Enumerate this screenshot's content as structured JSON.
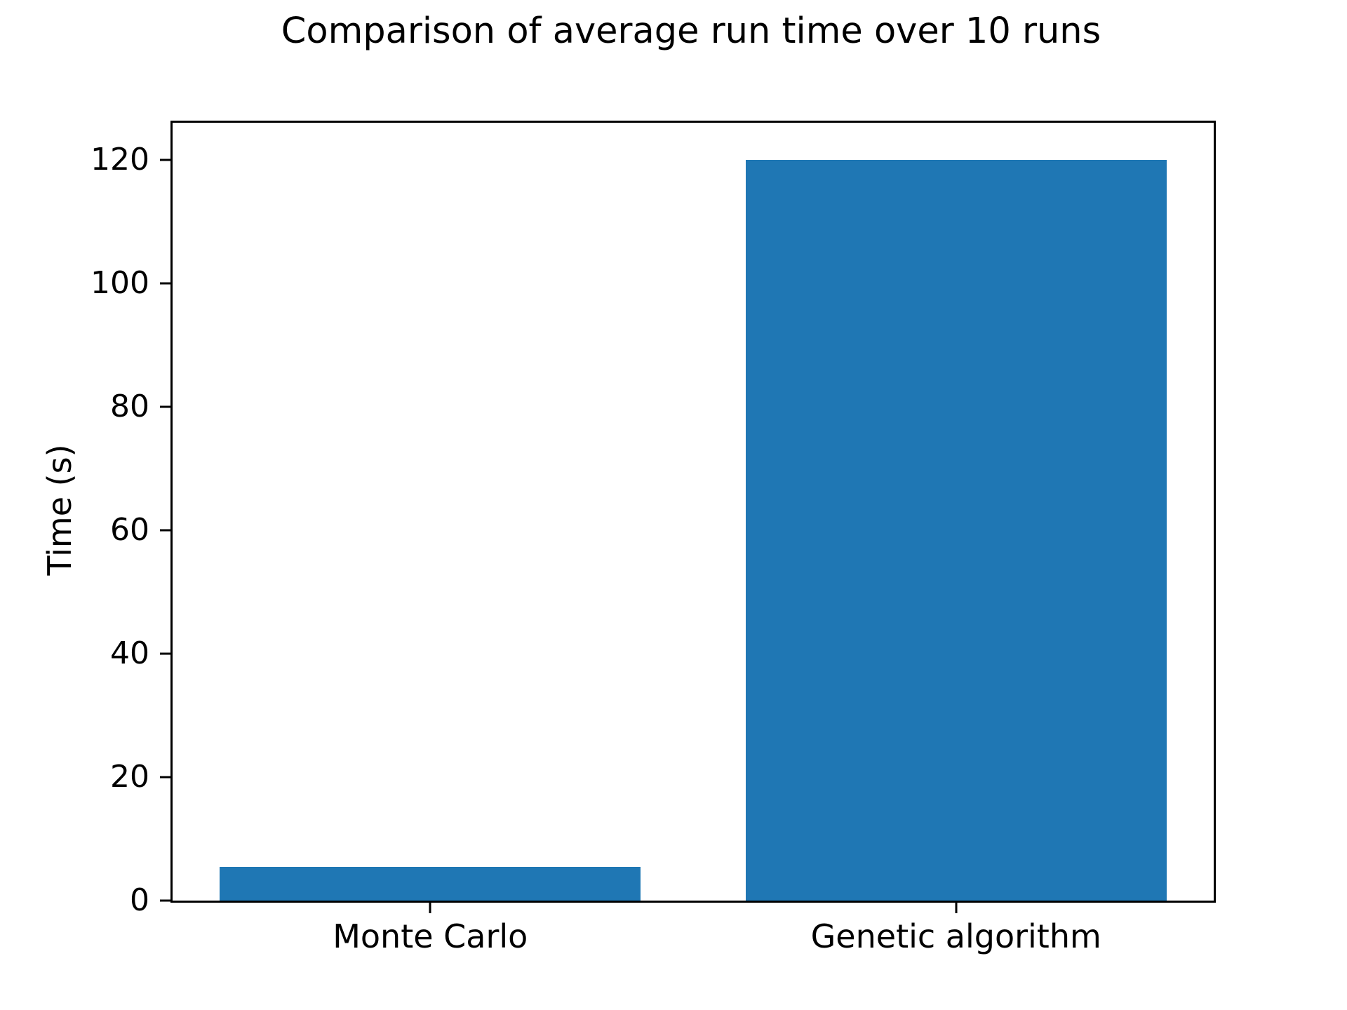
{
  "chart_data": {
    "type": "bar",
    "title": "Comparison of average run time over 10 runs",
    "xlabel": "",
    "ylabel": "Time (s)",
    "categories": [
      "Monte Carlo",
      "Genetic algorithm"
    ],
    "values": [
      5.4,
      120
    ],
    "yticks": [
      0,
      20,
      40,
      60,
      80,
      100,
      120
    ],
    "ylim": [
      0,
      126
    ],
    "bar_width": 0.8,
    "grid": false,
    "legend": false,
    "colors": {
      "bar": "#1f77b4",
      "text": "#000000",
      "spine": "#000000",
      "background": "#ffffff"
    }
  }
}
